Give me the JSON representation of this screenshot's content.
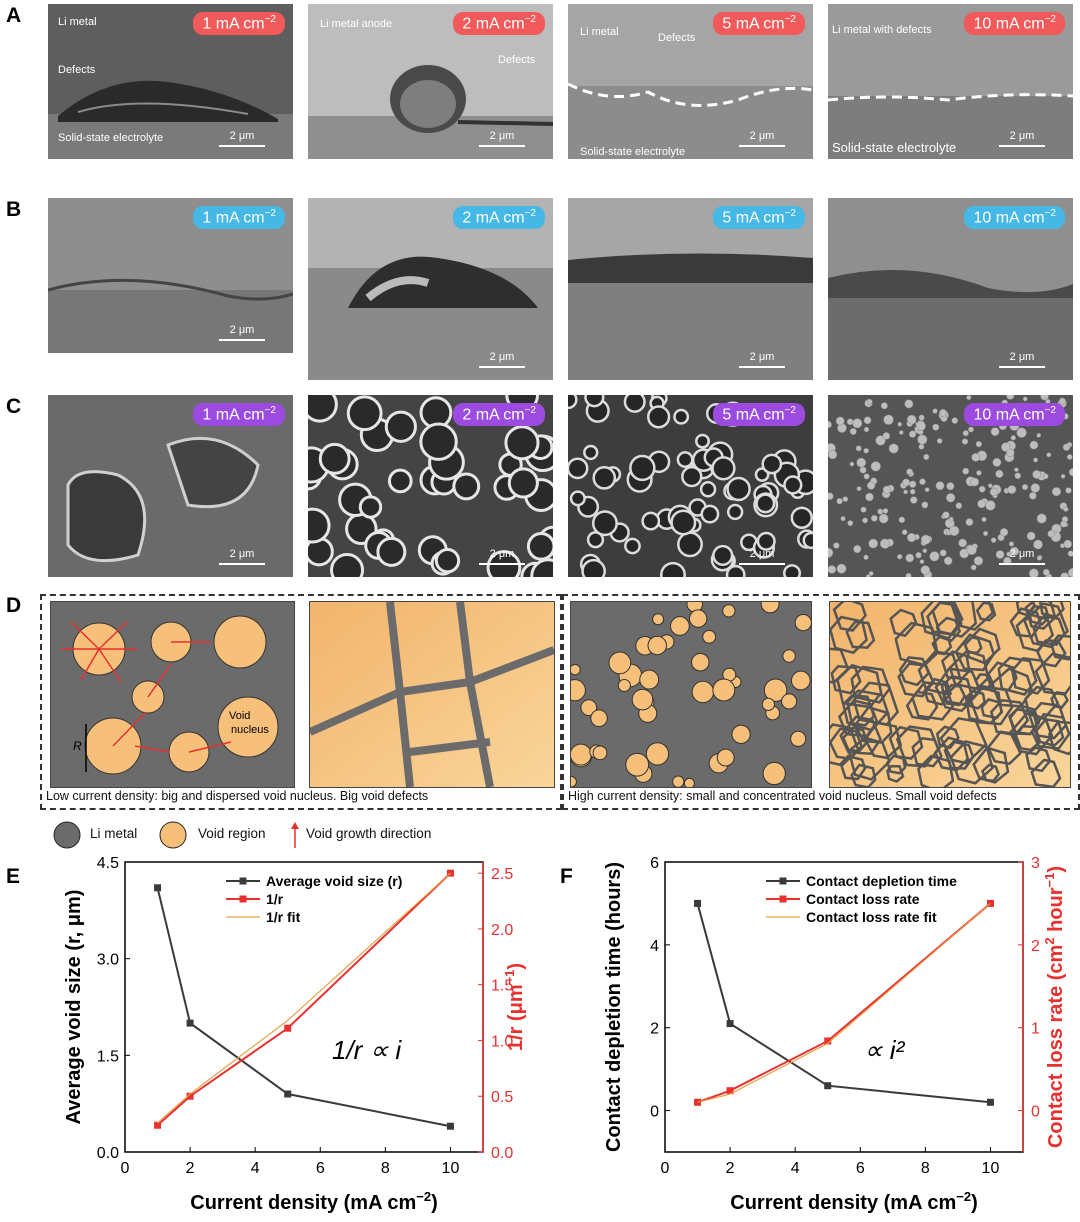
{
  "panel_labels": {
    "a": "A",
    "b": "B",
    "c": "C",
    "d": "D",
    "e": "E",
    "f": "F"
  },
  "badge_prefix": [
    "1 mA cm",
    "2 mA cm",
    "5 mA cm",
    "10 mA cm"
  ],
  "badge_exp": "−2",
  "scale_bar": "2 μm",
  "row_a": {
    "p1": {
      "top": "Li metal",
      "mid": "Defects",
      "bottom": "Solid-state electrolyte"
    },
    "p2": {
      "top": "Li metal anode",
      "mid": "Defects"
    },
    "p3": {
      "top": "Li metal",
      "mid": "Defects",
      "bottom": "Solid-state electrolyte"
    },
    "p4": {
      "top": "Li metal with defects",
      "bottom": "Solid-state electrolyte"
    }
  },
  "colors": {
    "row_a": "#f05a5a",
    "row_b": "#45b8e6",
    "row_c": "#9b4be0",
    "void": "#f6c07a",
    "li": "#6b6b6b",
    "series_black": "#3a3a3a",
    "series_red": "#e8312f",
    "fit": "#e6a14a"
  },
  "d": {
    "low_caption": "Low current density: big and dispersed void nucleus. Big void defects",
    "high_caption": "High current density: small and concentrated void nucleus. Small void defects",
    "r_label": "R",
    "void_nucleus_1": "Void",
    "void_nucleus_2": "nucleus"
  },
  "legend": {
    "li_metal": "Li metal",
    "void_region": "Void region",
    "growth": "Void growth direction"
  },
  "chart_data": [
    {
      "type": "line",
      "x": [
        1,
        2,
        5,
        10
      ],
      "xlabel": "Current density (mA cm",
      "xlabel_exp": "−2",
      "xlabel_end": ")",
      "xlim": [
        0,
        11
      ],
      "xticks": [
        "0",
        "2",
        "4",
        "6",
        "8",
        "10"
      ],
      "ylabel_left": "Average void size (r, μm)",
      "ylim_left": [
        0,
        4.5
      ],
      "yticks_left": [
        "0.0",
        "1.5",
        "3.0",
        "4.5"
      ],
      "ylabel_right": "1/r (μm",
      "ylabel_right_exp": "−1",
      "ylabel_right_end": ")",
      "ylim_right": [
        0,
        2.6
      ],
      "yticks_right": [
        "0.0",
        "0.5",
        "1.0",
        "1.5",
        "2.0",
        "2.5"
      ],
      "series": [
        {
          "name": "Average void size (r)",
          "axis": "left",
          "values": [
            4.1,
            2.0,
            0.9,
            0.4
          ]
        },
        {
          "name": "1/r",
          "axis": "right",
          "values": [
            0.24,
            0.5,
            1.11,
            2.5
          ]
        },
        {
          "name": "1/r fit",
          "axis": "right",
          "values": [
            0.26,
            0.52,
            1.18,
            2.5
          ]
        }
      ],
      "annotation": "1/r ∝ i"
    },
    {
      "type": "line",
      "x": [
        1,
        2,
        5,
        10
      ],
      "xlabel": "Current density (mA cm",
      "xlabel_exp": "−2",
      "xlabel_end": ")",
      "xlim": [
        0,
        11
      ],
      "xticks": [
        "0",
        "2",
        "4",
        "6",
        "8",
        "10"
      ],
      "ylabel_left": "Contact depletion time (hours)",
      "ylim_left": [
        -1,
        6
      ],
      "yticks_left": [
        "0",
        "2",
        "4",
        "6"
      ],
      "ylabel_right": "Contact loss rate (cm",
      "ylabel_right_exp": "2",
      "ylabel_right_mid": " hour",
      "ylabel_right_exp2": "−1",
      "ylabel_right_end": ")",
      "ylim_right": [
        -0.5,
        3
      ],
      "yticks_right": [
        "0",
        "1",
        "2",
        "3"
      ],
      "series": [
        {
          "name": "Contact depletion time",
          "axis": "left",
          "values": [
            5.0,
            2.1,
            0.6,
            0.2
          ]
        },
        {
          "name": "Contact loss rate",
          "axis": "right",
          "values": [
            0.1,
            0.24,
            0.84,
            2.5
          ]
        },
        {
          "name": "Contact loss rate fit",
          "axis": "right",
          "values": [
            0.1,
            0.2,
            0.81,
            2.5
          ]
        }
      ],
      "annotation": "∝ i²"
    }
  ]
}
